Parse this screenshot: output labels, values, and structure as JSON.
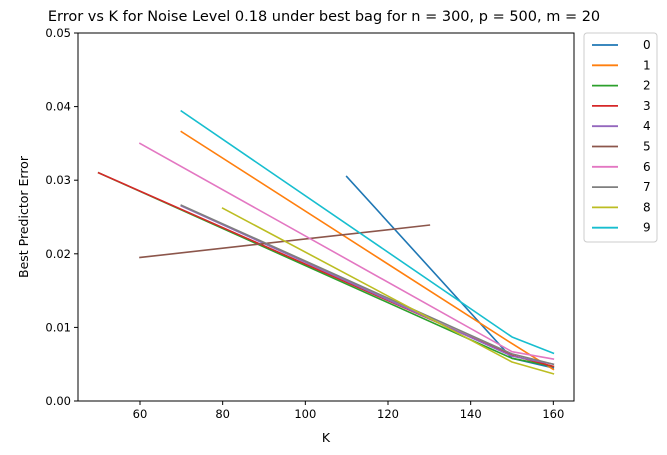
{
  "chart_data": {
    "type": "line",
    "title": "Error vs K for Noise Level 0.18 under best bag for n = 300, p = 500, m = 20",
    "xlabel": "K",
    "ylabel": "Best Predictor Error",
    "xlim": [
      45,
      165
    ],
    "ylim": [
      0,
      0.05
    ],
    "xticks": [
      60,
      80,
      100,
      120,
      140,
      160
    ],
    "xtick_labels": [
      "60",
      "80",
      "100",
      "120",
      "140",
      "160"
    ],
    "yticks": [
      0,
      0.01,
      0.02,
      0.03,
      0.04,
      0.05
    ],
    "ytick_labels": [
      "0.00",
      "0.01",
      "0.02",
      "0.03",
      "0.04",
      "0.05"
    ],
    "grid": false,
    "legend_position": "outside-right-top",
    "series": [
      {
        "name": "0",
        "color": "#1f77b4",
        "points": [
          [
            110,
            0.0305
          ],
          [
            150,
            0.0058
          ],
          [
            160,
            0.0045
          ]
        ]
      },
      {
        "name": "1",
        "color": "#ff7f0e",
        "points": [
          [
            70,
            0.0366
          ],
          [
            150,
            0.0078
          ],
          [
            160,
            0.0043
          ]
        ]
      },
      {
        "name": "2",
        "color": "#2ca02c",
        "points": [
          [
            50,
            0.031
          ],
          [
            150,
            0.0058
          ],
          [
            160,
            0.0047
          ]
        ]
      },
      {
        "name": "3",
        "color": "#d62728",
        "points": [
          [
            50,
            0.031
          ],
          [
            150,
            0.0062
          ],
          [
            160,
            0.0047
          ]
        ]
      },
      {
        "name": "4",
        "color": "#9467bd",
        "points": [
          [
            70,
            0.0265
          ],
          [
            150,
            0.0061
          ],
          [
            160,
            0.005
          ]
        ]
      },
      {
        "name": "5",
        "color": "#8c564b",
        "points": [
          [
            60,
            0.0195
          ],
          [
            130,
            0.0239
          ]
        ]
      },
      {
        "name": "6",
        "color": "#e377c2",
        "points": [
          [
            60,
            0.035
          ],
          [
            150,
            0.0067
          ],
          [
            160,
            0.0057
          ]
        ]
      },
      {
        "name": "7",
        "color": "#7f7f7f",
        "points": [
          [
            70,
            0.0266
          ],
          [
            150,
            0.0064
          ],
          [
            160,
            0.005
          ]
        ]
      },
      {
        "name": "8",
        "color": "#bcbd22",
        "points": [
          [
            80,
            0.0262
          ],
          [
            150,
            0.0053
          ],
          [
            160,
            0.0037
          ]
        ]
      },
      {
        "name": "9",
        "color": "#17becf",
        "points": [
          [
            70,
            0.0394
          ],
          [
            150,
            0.0087
          ],
          [
            160,
            0.0065
          ]
        ]
      }
    ]
  }
}
